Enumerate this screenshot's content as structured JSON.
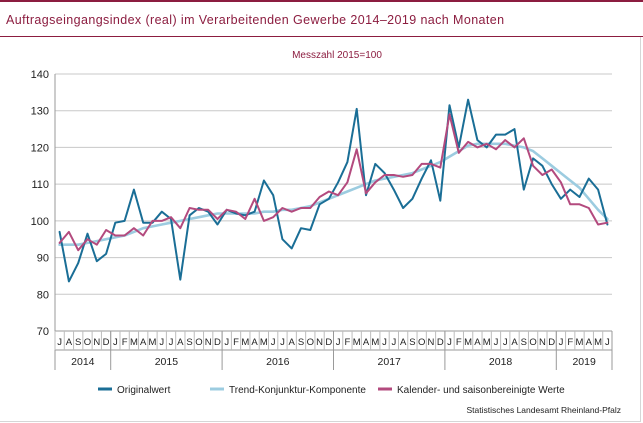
{
  "title": "Auftragseingangsindex (real) im Verarbeitenden Gewerbe 2014–2019 nach Monaten",
  "source": "Statistisches Landesamt Rheinland-Pfalz",
  "colors": {
    "brand": "#8c1d40",
    "original": "#1a6e96",
    "trend": "#9ccce0",
    "seasonal": "#b34a7e",
    "grid": "#c8c8c8"
  },
  "chart_data": {
    "type": "line",
    "subtitle": "Messzahl 2015=100",
    "ylim": [
      70,
      140
    ],
    "yticks": [
      70,
      80,
      90,
      100,
      110,
      120,
      130,
      140
    ],
    "grid": "horizontal",
    "legend_position": "bottom",
    "month_labels": [
      "J",
      "A",
      "S",
      "O",
      "N",
      "D",
      "J",
      "F",
      "M",
      "A",
      "M",
      "J",
      "J",
      "A",
      "S",
      "O",
      "N",
      "D",
      "J",
      "F",
      "M",
      "A",
      "M",
      "J",
      "J",
      "A",
      "S",
      "O",
      "N",
      "D",
      "J",
      "F",
      "M",
      "A",
      "M",
      "J",
      "J",
      "A",
      "S",
      "O",
      "N",
      "D",
      "J",
      "F",
      "M",
      "A",
      "M",
      "J",
      "J",
      "A",
      "S",
      "O",
      "N",
      "D",
      "J",
      "F",
      "M",
      "A",
      "M",
      "J"
    ],
    "years": [
      {
        "label": "2014",
        "months": 6
      },
      {
        "label": "2015",
        "months": 12
      },
      {
        "label": "2016",
        "months": 12
      },
      {
        "label": "2017",
        "months": 12
      },
      {
        "label": "2018",
        "months": 12
      },
      {
        "label": "2019",
        "months": 6
      }
    ],
    "series": [
      {
        "name": "Originalwert",
        "values": [
          97,
          83.5,
          88.5,
          96.5,
          89,
          91,
          99.5,
          100,
          108.5,
          99.5,
          99.5,
          102.5,
          100.5,
          84,
          101.5,
          103.5,
          102.5,
          99,
          103,
          102,
          101.5,
          102.5,
          111,
          107,
          95,
          92.5,
          98,
          97.5,
          104.5,
          106,
          110.5,
          116,
          130.5,
          107,
          115.5,
          113,
          108.5,
          103.5,
          106,
          111.5,
          116.5,
          105.5,
          131.5,
          120,
          133,
          122,
          120,
          123.5,
          123.5,
          125,
          108.5,
          117,
          115,
          110,
          106,
          108.5,
          106.5,
          111.5,
          108.5,
          99
        ]
      },
      {
        "name": "Trend-Konjunktur-Komponente",
        "values": [
          93.5,
          93.5,
          93.5,
          94,
          94.5,
          95,
          95.5,
          96,
          97,
          98,
          98.5,
          99,
          99.5,
          100,
          100.5,
          101,
          101.5,
          102,
          102,
          102,
          102,
          102,
          102.5,
          102.5,
          103,
          103,
          103.5,
          104,
          105,
          106,
          107,
          108,
          109,
          110,
          111,
          111.5,
          112,
          112.5,
          113,
          114,
          115,
          116,
          117.5,
          119,
          120.5,
          121,
          121,
          121,
          121,
          120.5,
          120,
          119,
          117,
          115,
          113,
          111,
          109,
          106,
          103,
          100.5
        ]
      },
      {
        "name": "Kalender- und saisonbereinigte Werte",
        "values": [
          94,
          97,
          92,
          95,
          93.5,
          97.5,
          96,
          96,
          98,
          96,
          100,
          100,
          101,
          98,
          103.5,
          103,
          103,
          100.5,
          103,
          102.5,
          100.5,
          106,
          100,
          101,
          103.5,
          102.5,
          103.5,
          103.5,
          106.5,
          108,
          107,
          110.5,
          119.5,
          107.5,
          110.5,
          112.5,
          112.5,
          112,
          112.5,
          115.5,
          115.5,
          114.5,
          129,
          118.5,
          121.5,
          120,
          121,
          119.5,
          122,
          120,
          122.5,
          115,
          112.5,
          114,
          110.5,
          104.5,
          104.5,
          103.5,
          99,
          99.5
        ]
      }
    ]
  }
}
